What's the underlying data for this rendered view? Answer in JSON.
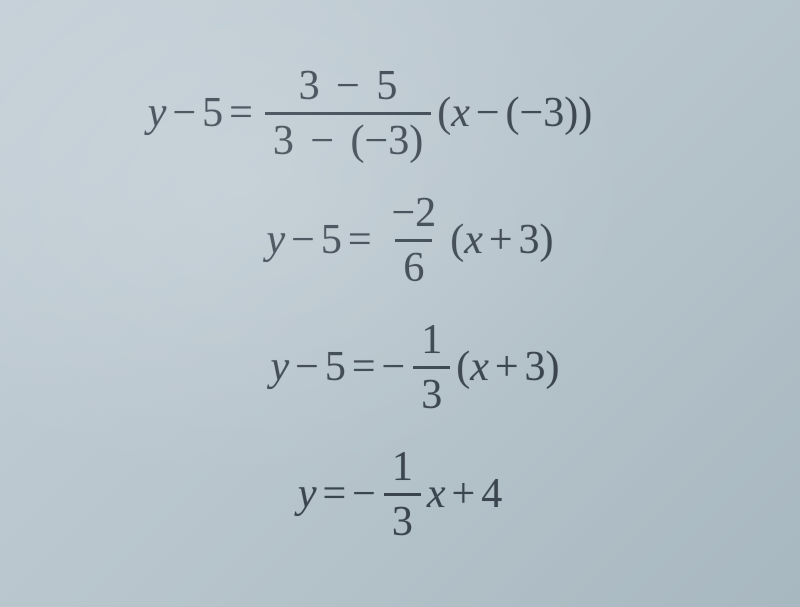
{
  "background": {
    "gradient_start": "#c5d0d8",
    "gradient_mid": "#b8c5cd",
    "gradient_end": "#a8b8c0"
  },
  "text_color": "#3a4550",
  "font_size": 42,
  "equations": {
    "line1": {
      "lhs_var": "y",
      "lhs_op": "−",
      "lhs_num": "5",
      "eq": "=",
      "frac_num_a": "3",
      "frac_num_op": "−",
      "frac_num_b": "5",
      "frac_den_a": "3",
      "frac_den_op": "−",
      "frac_den_b": "(−3)",
      "rhs_lparen": "(",
      "rhs_var": "x",
      "rhs_op": "−",
      "rhs_b": "(−3)",
      "rhs_rparen": ")"
    },
    "line2": {
      "lhs_var": "y",
      "lhs_op": "−",
      "lhs_num": "5",
      "eq": "=",
      "frac_num": "−2",
      "frac_den": "6",
      "rhs_lparen": "(",
      "rhs_var": "x",
      "rhs_op": "+",
      "rhs_num": "3",
      "rhs_rparen": ")"
    },
    "line3": {
      "lhs_var": "y",
      "lhs_op": "−",
      "lhs_num": "5",
      "eq": "=",
      "neg": "−",
      "frac_num": "1",
      "frac_den": "3",
      "rhs_lparen": "(",
      "rhs_var": "x",
      "rhs_op": "+",
      "rhs_num": "3",
      "rhs_rparen": ")"
    },
    "line4": {
      "lhs_var": "y",
      "eq": "=",
      "neg": "−",
      "frac_num": "1",
      "frac_den": "3",
      "rhs_var": "x",
      "rhs_op": "+",
      "rhs_num": "4"
    }
  }
}
